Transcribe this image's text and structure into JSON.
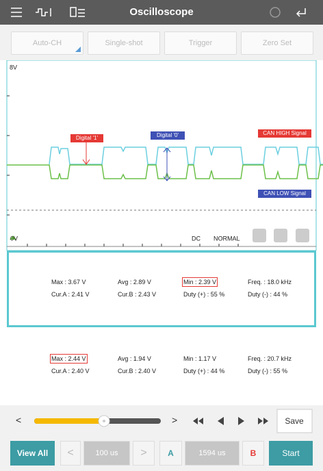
{
  "header": {
    "title": "Oscilloscope"
  },
  "buttons": [
    "Auto-CH",
    "Single-shot",
    "Trigger",
    "Zero Set"
  ],
  "scope": {
    "y_top": "8V",
    "y_zero": "0V",
    "annotations": [
      "Digital '1'",
      "Digital '0'",
      "CAN HIGH Signal",
      "CAN LOW Signal"
    ],
    "coupling": "DC",
    "mode": "NORMAL"
  },
  "panels": [
    {
      "row1": [
        "Max : 3.67 V",
        "Avg : 2.89 V",
        "Min : 2.39 V",
        "Freq. : 18.0 kHz"
      ],
      "row2": [
        "Cur.A : 2.41 V",
        "Cur.B : 2.43 V",
        "Duty (+) : 55 %",
        "Duty (-) : 44 %"
      ]
    },
    {
      "row1": [
        "Max : 2.44 V",
        "Avg : 1.94 V",
        "Min : 1.17 V",
        "Freq. : 20.7 kHz"
      ],
      "row2": [
        "Cur.A : 2.40 V",
        "Cur.B : 2.40 V",
        "Duty (+) : 44 %",
        "Duty (-) : 55 %"
      ]
    }
  ],
  "controls": {
    "prev": "<",
    "next": ">",
    "save": "Save"
  },
  "footer": {
    "view_all": "View All",
    "prev": "<",
    "time_a": "100 us",
    "next": ">",
    "cursor_a": "A",
    "time_b": "1594 us",
    "cursor_b": "B",
    "start": "Start"
  }
}
